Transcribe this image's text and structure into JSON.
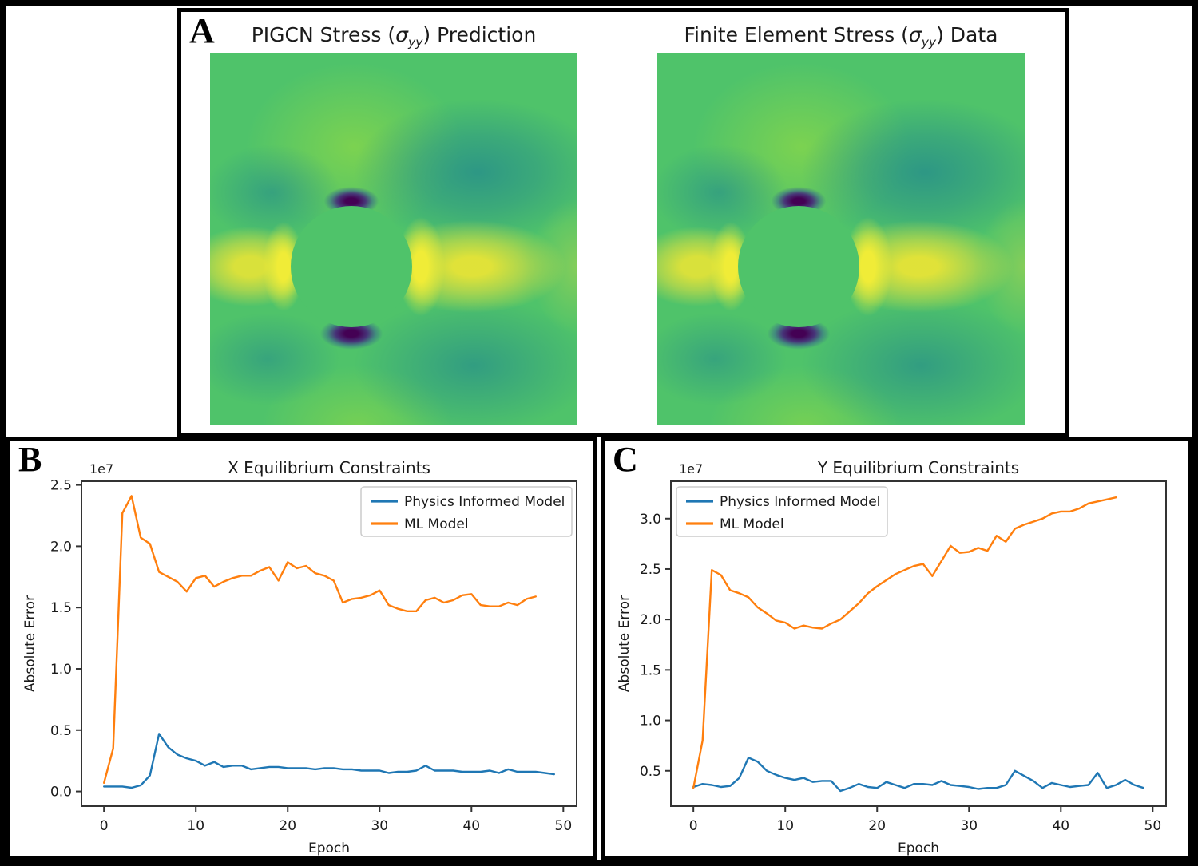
{
  "panel_a": {
    "label": "A",
    "left_plot_title": {
      "pre": "PIGCN Stress (",
      "sigma": "σ",
      "subscript": "yy",
      "post": ") Prediction"
    },
    "right_plot_title": {
      "pre": "Finite Element Stress (",
      "sigma": "σ",
      "subscript": "yy",
      "post": ") Data"
    },
    "colormap": {
      "name": "viridis",
      "background_green": "#4fc36a",
      "teal_lobe": "#248b8c",
      "yellow_lobe": "#e8e436",
      "dark_stress_spot": "#440154",
      "light_green_blob": "#7ed34f"
    }
  },
  "panel_b": {
    "label": "B"
  },
  "panel_c": {
    "label": "C"
  },
  "chart_data": [
    {
      "id": "x-equilibrium",
      "type": "line",
      "title": "X Equilibrium Constraints",
      "xlabel": "Epoch",
      "ylabel": "Absolute Error",
      "y_offset_label": "1e7",
      "y_unit_multiplier": 10000000,
      "xlim": [
        -2.45,
        51.45
      ],
      "ylim": [
        -0.12,
        2.53
      ],
      "xticks": [
        0,
        10,
        20,
        30,
        40,
        50
      ],
      "xtick_labels": [
        "0",
        "10",
        "20",
        "30",
        "40",
        "50"
      ],
      "yticks": [
        0.0,
        0.5,
        1.0,
        1.5,
        2.0,
        2.5
      ],
      "ytick_labels": [
        "0.0",
        "0.5",
        "1.0",
        "1.5",
        "2.0",
        "2.5"
      ],
      "grid": false,
      "legend_position": "top-right",
      "series": [
        {
          "name": "Physics Informed Model",
          "color": "#1f77b4",
          "x_start": 0,
          "x_step": 1,
          "values": [
            0.04,
            0.04,
            0.04,
            0.03,
            0.05,
            0.13,
            0.47,
            0.36,
            0.3,
            0.27,
            0.25,
            0.21,
            0.24,
            0.2,
            0.21,
            0.21,
            0.18,
            0.19,
            0.2,
            0.2,
            0.19,
            0.19,
            0.19,
            0.18,
            0.19,
            0.19,
            0.18,
            0.18,
            0.17,
            0.17,
            0.17,
            0.15,
            0.16,
            0.16,
            0.17,
            0.21,
            0.17,
            0.17,
            0.17,
            0.16,
            0.16,
            0.16,
            0.17,
            0.15,
            0.18,
            0.16,
            0.16,
            0.16,
            0.15,
            0.14
          ]
        },
        {
          "name": "ML Model",
          "color": "#ff7f0e",
          "x_start": 0,
          "x_step": 1,
          "values": [
            0.07,
            0.35,
            2.27,
            2.41,
            2.07,
            2.02,
            1.79,
            1.75,
            1.71,
            1.63,
            1.74,
            1.76,
            1.67,
            1.71,
            1.74,
            1.76,
            1.76,
            1.8,
            1.83,
            1.72,
            1.87,
            1.82,
            1.84,
            1.78,
            1.76,
            1.72,
            1.54,
            1.57,
            1.58,
            1.6,
            1.64,
            1.52,
            1.49,
            1.47,
            1.47,
            1.56,
            1.58,
            1.54,
            1.56,
            1.6,
            1.61,
            1.52,
            1.51,
            1.51,
            1.54,
            1.52,
            1.57,
            1.59
          ]
        }
      ]
    },
    {
      "id": "y-equilibrium",
      "type": "line",
      "title": "Y Equilibrium Constraints",
      "xlabel": "Epoch",
      "ylabel": "Absolute Error",
      "y_offset_label": "1e7",
      "y_unit_multiplier": 10000000,
      "xlim": [
        -2.45,
        51.45
      ],
      "ylim": [
        0.15,
        3.37
      ],
      "xticks": [
        0,
        10,
        20,
        30,
        40,
        50
      ],
      "xtick_labels": [
        "0",
        "10",
        "20",
        "30",
        "40",
        "50"
      ],
      "yticks": [
        0.5,
        1.0,
        1.5,
        2.0,
        2.5,
        3.0
      ],
      "ytick_labels": [
        "0.5",
        "1.0",
        "1.5",
        "2.0",
        "2.5",
        "3.0"
      ],
      "grid": false,
      "legend_position": "top-left",
      "series": [
        {
          "name": "Physics Informed Model",
          "color": "#1f77b4",
          "x_start": 0,
          "x_step": 1,
          "values": [
            0.34,
            0.37,
            0.36,
            0.34,
            0.35,
            0.43,
            0.63,
            0.59,
            0.5,
            0.46,
            0.43,
            0.41,
            0.43,
            0.39,
            0.4,
            0.4,
            0.3,
            0.33,
            0.37,
            0.34,
            0.33,
            0.39,
            0.36,
            0.33,
            0.37,
            0.37,
            0.36,
            0.4,
            0.36,
            0.35,
            0.34,
            0.32,
            0.33,
            0.33,
            0.36,
            0.5,
            0.45,
            0.4,
            0.33,
            0.38,
            0.36,
            0.34,
            0.35,
            0.36,
            0.48,
            0.33,
            0.36,
            0.41,
            0.36,
            0.33
          ]
        },
        {
          "name": "ML Model",
          "color": "#ff7f0e",
          "x_start": 0,
          "x_step": 1,
          "values": [
            0.33,
            0.8,
            2.49,
            2.44,
            2.29,
            2.26,
            2.22,
            2.12,
            2.06,
            1.99,
            1.97,
            1.91,
            1.94,
            1.92,
            1.91,
            1.96,
            2.0,
            2.08,
            2.16,
            2.26,
            2.33,
            2.39,
            2.45,
            2.49,
            2.53,
            2.55,
            2.43,
            2.58,
            2.73,
            2.66,
            2.67,
            2.71,
            2.68,
            2.83,
            2.77,
            2.9,
            2.94,
            2.97,
            3.0,
            3.05,
            3.07,
            3.07,
            3.1,
            3.15,
            3.17,
            3.19,
            3.21
          ]
        }
      ]
    }
  ]
}
